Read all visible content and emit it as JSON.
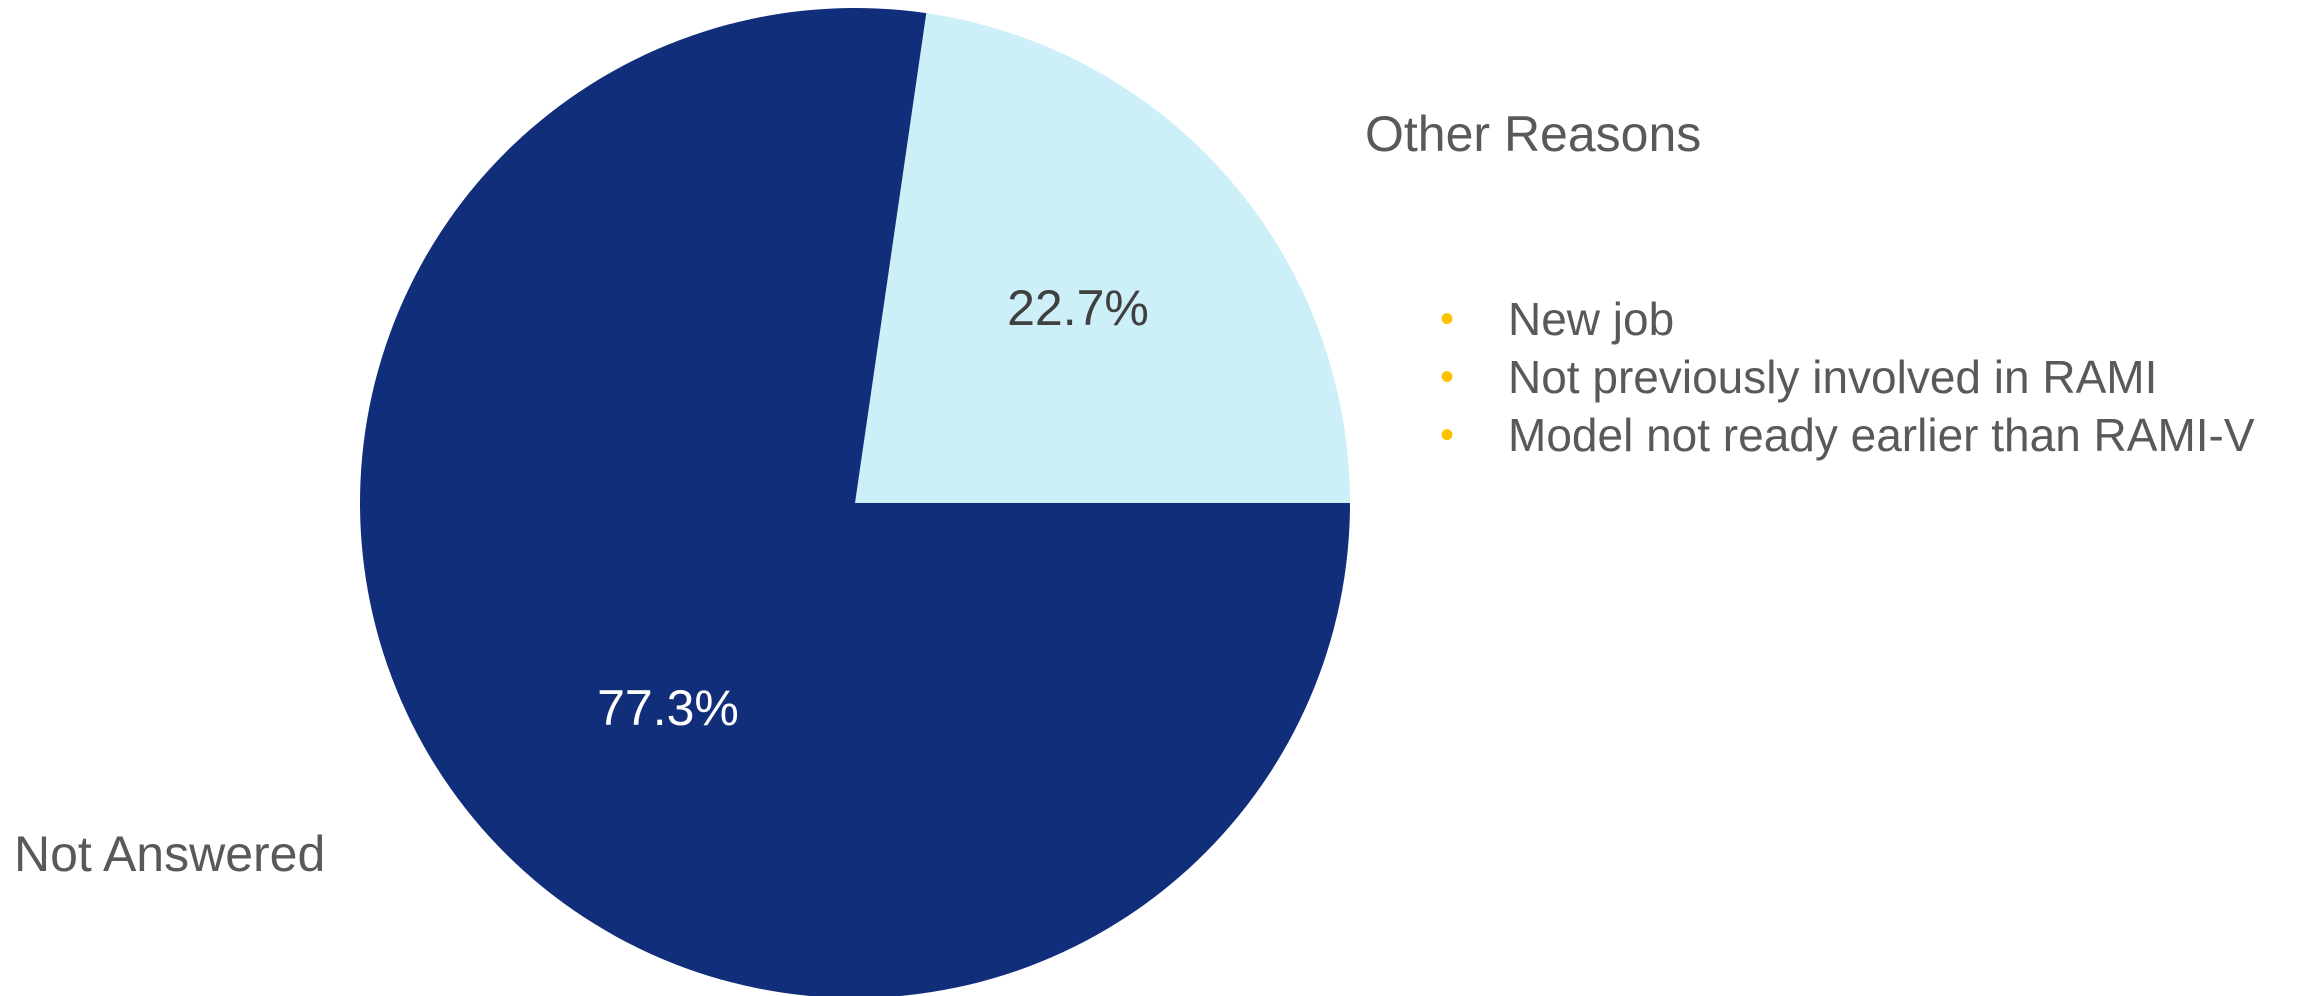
{
  "chart_data": {
    "type": "pie",
    "slices": [
      {
        "label": "Other Reasons",
        "value": 22.7,
        "value_label": "22.7%",
        "color": "#CCEFF8",
        "label_color": "#404040"
      },
      {
        "label": "Not Answered",
        "value": 77.3,
        "value_label": "77.3%",
        "color": "#112E7B",
        "label_color": "#FFFFFF"
      }
    ],
    "start": "3 o'clock, counter-clockwise",
    "legend": "none",
    "category_labels": "outside"
  },
  "notes": {
    "bullet_color": "#FFC000",
    "items": [
      "New job",
      "Not previously involved in RAMI",
      "Model not ready earlier than RAMI-V"
    ]
  }
}
